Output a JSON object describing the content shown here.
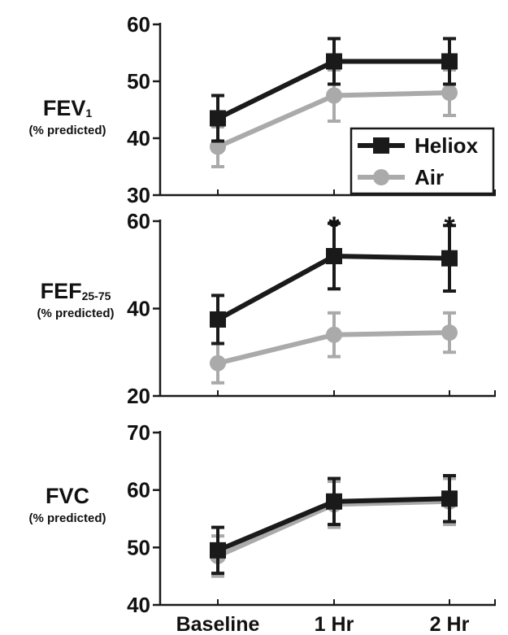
{
  "colors": {
    "heliox": "#1a1a1a",
    "air": "#aaaaaa",
    "axis": "#1a1a1a"
  },
  "chart_data": [
    {
      "type": "line",
      "ylabel": "FEV",
      "ylabel_subscript": "1",
      "ylabel_unit": "(% predicted)",
      "categories": [
        "Baseline",
        "1 Hr",
        "2 Hr"
      ],
      "ylim": [
        30,
        60
      ],
      "yticks": [
        30,
        40,
        50,
        60
      ],
      "legend_position": "lower-right",
      "series": [
        {
          "name": "Heliox",
          "marker": "square",
          "values": [
            43.5,
            53.5,
            53.5
          ],
          "error": [
            4,
            4,
            4
          ]
        },
        {
          "name": "Air",
          "marker": "circle",
          "values": [
            38.5,
            47.5,
            48
          ],
          "error": [
            3.5,
            4.5,
            4
          ]
        }
      ],
      "annotations": []
    },
    {
      "type": "line",
      "ylabel": "FEF",
      "ylabel_subscript": "25-75",
      "ylabel_unit": "(% predicted)",
      "categories": [
        "Baseline",
        "1 Hr",
        "2 Hr"
      ],
      "ylim": [
        20,
        60
      ],
      "yticks": [
        20,
        40,
        60
      ],
      "series": [
        {
          "name": "Heliox",
          "marker": "square",
          "values": [
            37.5,
            52,
            51.5
          ],
          "error": [
            5.5,
            7.5,
            7.5
          ]
        },
        {
          "name": "Air",
          "marker": "circle",
          "values": [
            27.5,
            34,
            34.5
          ],
          "error": [
            4.5,
            5,
            4.5
          ]
        }
      ],
      "annotations": [
        {
          "text": "*",
          "category": "1 Hr"
        },
        {
          "text": "*",
          "category": "2 Hr"
        }
      ]
    },
    {
      "type": "line",
      "ylabel": "FVC",
      "ylabel_subscript": "",
      "ylabel_unit": "(% predicted)",
      "categories": [
        "Baseline",
        "1 Hr",
        "2 Hr"
      ],
      "ylim": [
        40,
        70
      ],
      "yticks": [
        40,
        50,
        60,
        70
      ],
      "series": [
        {
          "name": "Heliox",
          "marker": "square",
          "values": [
            49.5,
            58,
            58.5
          ],
          "error": [
            4,
            4,
            4
          ]
        },
        {
          "name": "Air",
          "marker": "circle",
          "values": [
            48.5,
            57.5,
            58
          ],
          "error": [
            3.5,
            4,
            4
          ]
        }
      ],
      "annotations": []
    }
  ]
}
